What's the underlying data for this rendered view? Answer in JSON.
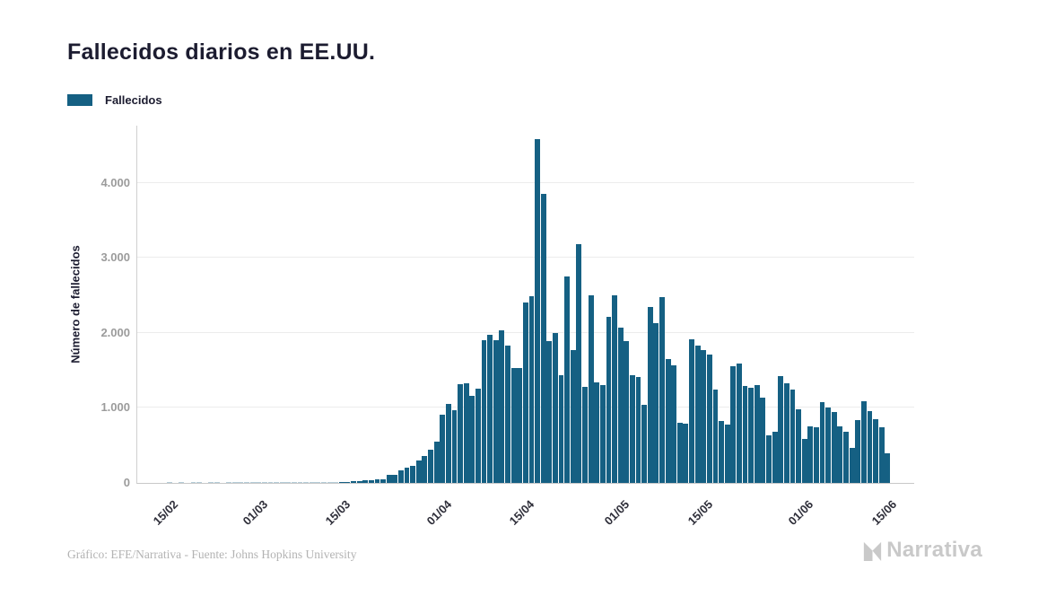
{
  "title": "Fallecidos diarios en EE.UU.",
  "legend": {
    "label": "Fallecidos"
  },
  "y_axis_title": "Número de fallecidos",
  "footer": {
    "credit": "Gráfico: EFE/Narrativa - Fuente: Johns Hopkins University",
    "brand": "Narrativa"
  },
  "colors": {
    "bar": "#156083",
    "title_text": "#1c1c30",
    "y_tick_text": "#9b9b9b",
    "x_tick_text": "#2f2f3a",
    "gridline": "#ececec",
    "axis_line": "#cfcfcf",
    "footer_text": "#b3b3b3",
    "brand_text": "#c9c9c9"
  },
  "chart_data": {
    "type": "bar",
    "title": "Fallecidos diarios en EE.UU.",
    "series_name": "Fallecidos",
    "xlabel": "",
    "ylabel": "Número de fallecidos",
    "ylim": [
      0,
      4765
    ],
    "grid": true,
    "legend_position": "top-left",
    "x": [
      "10/02",
      "11/02",
      "12/02",
      "13/02",
      "14/02",
      "15/02",
      "16/02",
      "17/02",
      "18/02",
      "19/02",
      "20/02",
      "21/02",
      "22/02",
      "23/02",
      "24/02",
      "25/02",
      "26/02",
      "27/02",
      "28/02",
      "29/02",
      "01/03",
      "02/03",
      "03/03",
      "04/03",
      "05/03",
      "06/03",
      "07/03",
      "08/03",
      "09/03",
      "10/03",
      "11/03",
      "12/03",
      "13/03",
      "14/03",
      "15/03",
      "16/03",
      "17/03",
      "18/03",
      "19/03",
      "20/03",
      "21/03",
      "22/03",
      "23/03",
      "24/03",
      "25/03",
      "26/03",
      "27/03",
      "28/03",
      "29/03",
      "30/03",
      "31/03",
      "01/04",
      "02/04",
      "03/04",
      "04/04",
      "05/04",
      "06/04",
      "07/04",
      "08/04",
      "09/04",
      "10/04",
      "11/04",
      "12/04",
      "13/04",
      "14/04",
      "15/04",
      "16/04",
      "17/04",
      "18/04",
      "19/04",
      "20/04",
      "21/04",
      "22/04",
      "23/04",
      "24/04",
      "25/04",
      "26/04",
      "27/04",
      "28/04",
      "29/04",
      "30/04",
      "01/05",
      "02/05",
      "03/05",
      "04/05",
      "05/05",
      "06/05",
      "07/05",
      "08/05",
      "09/05",
      "10/05",
      "11/05",
      "12/05",
      "13/05",
      "14/05",
      "15/05",
      "16/05",
      "17/05",
      "18/05",
      "19/05",
      "20/05",
      "21/05",
      "22/05",
      "23/05",
      "24/05",
      "25/05",
      "26/05",
      "27/05",
      "28/05",
      "29/05",
      "30/05",
      "31/05",
      "01/06",
      "02/06",
      "03/06",
      "04/06",
      "05/06",
      "06/06",
      "07/06",
      "08/06",
      "09/06",
      "10/06",
      "11/06",
      "12/06",
      "13/06",
      "14/06",
      "15/06"
    ],
    "values": [
      0,
      0,
      0,
      0,
      0,
      1,
      0,
      1,
      0,
      1,
      1,
      0,
      1,
      1,
      0,
      1,
      1,
      1,
      1,
      2,
      3,
      5,
      2,
      3,
      2,
      3,
      4,
      3,
      4,
      5,
      7,
      6,
      8,
      10,
      13,
      17,
      21,
      26,
      32,
      40,
      45,
      50,
      104,
      112,
      164,
      208,
      224,
      295,
      355,
      447,
      548,
      912,
      1049,
      968,
      1321,
      1331,
      1165,
      1255,
      1906,
      1973,
      1900,
      2035,
      1830,
      1528,
      1535,
      2407,
      2494,
      4591,
      3857,
      1891,
      1997,
      1433,
      2750,
      1776,
      3179,
      1276,
      2508,
      1336,
      1308,
      2216,
      2508,
      2076,
      1896,
      1436,
      1416,
      1036,
      2350,
      2130,
      2480,
      1650,
      1570,
      805,
      790,
      1920,
      1830,
      1770,
      1710,
      1245,
      822,
      780,
      1560,
      1590,
      1290,
      1270,
      1300,
      1135,
      635,
      688,
      1430,
      1325,
      1250,
      985,
      585,
      750,
      745,
      1080,
      1000,
      945,
      757,
      688,
      472,
      838,
      1094,
      960,
      850,
      748,
      390
    ],
    "y_ticks": [
      {
        "value": 0,
        "label": "0"
      },
      {
        "value": 1000,
        "label": "1.000"
      },
      {
        "value": 2000,
        "label": "2.000"
      },
      {
        "value": 3000,
        "label": "3.000"
      },
      {
        "value": 4000,
        "label": "4.000"
      }
    ],
    "x_ticks": [
      {
        "label": "15/02",
        "day_index": 5
      },
      {
        "label": "01/03",
        "day_index": 20
      },
      {
        "label": "15/03",
        "day_index": 34
      },
      {
        "label": "01/04",
        "day_index": 51
      },
      {
        "label": "15/04",
        "day_index": 65
      },
      {
        "label": "01/05",
        "day_index": 81
      },
      {
        "label": "15/05",
        "day_index": 95
      },
      {
        "label": "01/06",
        "day_index": 112
      },
      {
        "label": "15/06",
        "day_index": 126
      }
    ]
  }
}
